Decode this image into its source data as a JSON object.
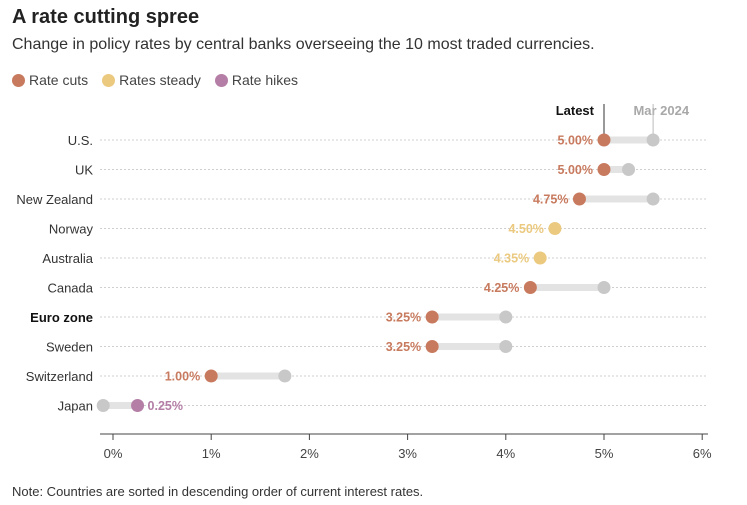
{
  "title": "A rate cutting spree",
  "subtitle": "Change in policy rates by central banks overseeing the 10 most traded currencies.",
  "note": "Note: Countries are sorted in descending order of current interest rates.",
  "colors": {
    "cut": "#C87A5E",
    "steady": "#EBC97F",
    "hike": "#B47EA6",
    "previous": "#C8C8C8",
    "connector": "#E3E3E3",
    "grid": "#CFCFCF"
  },
  "legend": [
    {
      "label": "Rate cuts",
      "key": "cut"
    },
    {
      "label": "Rates steady",
      "key": "steady"
    },
    {
      "label": "Rate hikes",
      "key": "hike"
    }
  ],
  "chart_data": {
    "type": "dumbbell",
    "header_latest": "Latest",
    "header_previous": "Mar 2024",
    "xlim": [
      -0.15,
      6
    ],
    "xticks": [
      0,
      1,
      2,
      3,
      4,
      5,
      6
    ],
    "xtick_labels": [
      "0%",
      "1%",
      "2%",
      "3%",
      "4%",
      "5%",
      "6%"
    ],
    "rows": [
      {
        "country": "U.S.",
        "latest": 5.0,
        "previous": 5.5,
        "status": "cut",
        "label": "5.00%",
        "bold": false
      },
      {
        "country": "UK",
        "latest": 5.0,
        "previous": 5.25,
        "status": "cut",
        "label": "5.00%",
        "bold": false
      },
      {
        "country": "New Zealand",
        "latest": 4.75,
        "previous": 5.5,
        "status": "cut",
        "label": "4.75%",
        "bold": false
      },
      {
        "country": "Norway",
        "latest": 4.5,
        "previous": 4.5,
        "status": "steady",
        "label": "4.50%",
        "bold": false
      },
      {
        "country": "Australia",
        "latest": 4.35,
        "previous": 4.35,
        "status": "steady",
        "label": "4.35%",
        "bold": false
      },
      {
        "country": "Canada",
        "latest": 4.25,
        "previous": 5.0,
        "status": "cut",
        "label": "4.25%",
        "bold": false
      },
      {
        "country": "Euro zone",
        "latest": 3.25,
        "previous": 4.0,
        "status": "cut",
        "label": "3.25%",
        "bold": true
      },
      {
        "country": "Sweden",
        "latest": 3.25,
        "previous": 4.0,
        "status": "cut",
        "label": "3.25%",
        "bold": false
      },
      {
        "country": "Switzerland",
        "latest": 1.0,
        "previous": 1.75,
        "status": "cut",
        "label": "1.00%",
        "bold": false
      },
      {
        "country": "Japan",
        "latest": 0.25,
        "previous": -0.1,
        "status": "hike",
        "label": "0.25%",
        "bold": false
      }
    ]
  }
}
